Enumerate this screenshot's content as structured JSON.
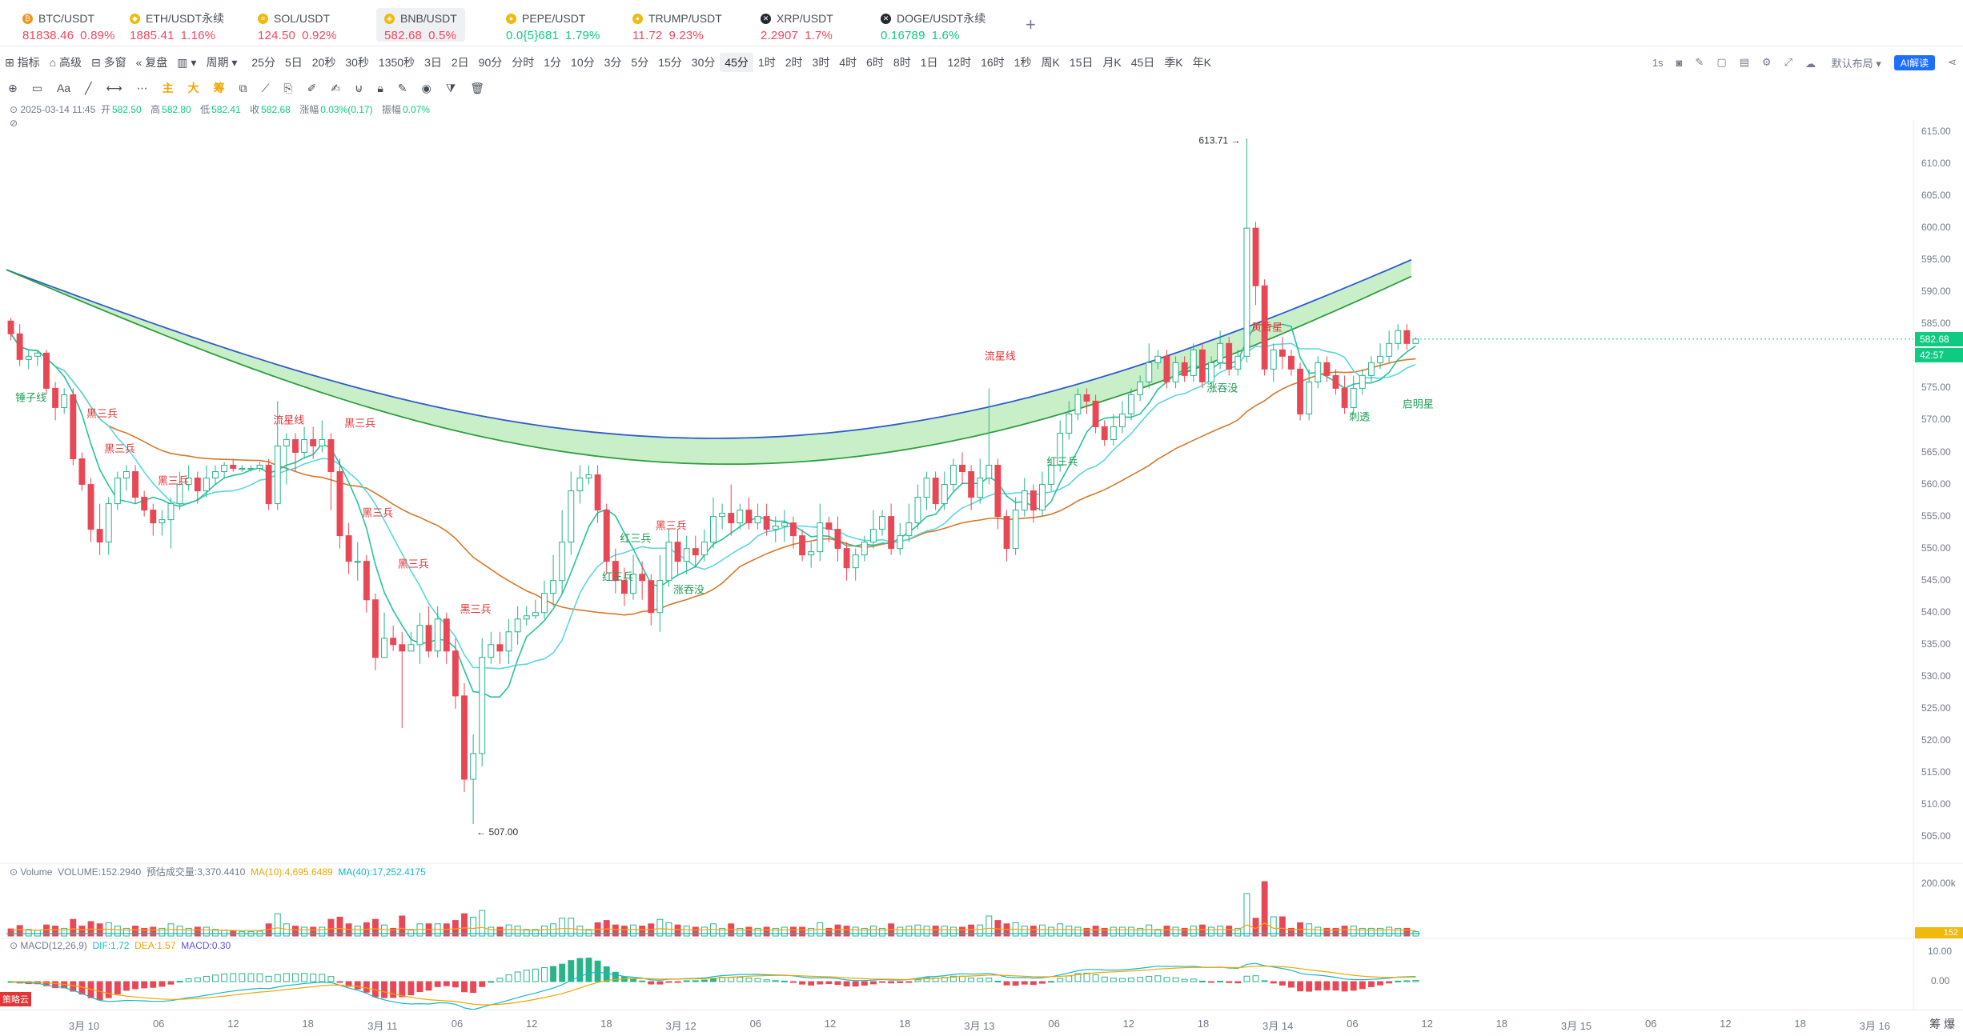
{
  "tabs": [
    {
      "symbol": "BTC/USDT",
      "price": "81838.46",
      "change": "0.89%",
      "dir": "down",
      "icon": "btc-coin-icon",
      "color": "#f7931a",
      "glyph": "₿"
    },
    {
      "symbol": "ETH/USDT永续",
      "price": "1885.41",
      "change": "1.16%",
      "dir": "down",
      "icon": "eth-coin-icon",
      "color": "#f0b90b",
      "glyph": "◆"
    },
    {
      "symbol": "SOL/USDT",
      "price": "124.50",
      "change": "0.92%",
      "dir": "down",
      "icon": "sol-coin-icon",
      "color": "#f0b90b",
      "glyph": "≡"
    },
    {
      "symbol": "BNB/USDT",
      "price": "582.68",
      "change": "0.5%",
      "dir": "down",
      "icon": "bnb-coin-icon",
      "color": "#f0b90b",
      "glyph": "◈"
    },
    {
      "symbol": "PEPE/USDT",
      "price": "0.0{5}681",
      "change": "1.79%",
      "dir": "up",
      "icon": "pepe-coin-icon",
      "color": "#f0b90b",
      "glyph": "●"
    },
    {
      "symbol": "TRUMP/USDT",
      "price": "11.72",
      "change": "9.23%",
      "dir": "down",
      "icon": "trump-coin-icon",
      "color": "#f0b90b",
      "glyph": "●"
    },
    {
      "symbol": "XRP/USDT",
      "price": "2.2907",
      "change": "1.7%",
      "dir": "down",
      "icon": "xrp-coin-icon",
      "color": "#23292f",
      "glyph": "✕"
    },
    {
      "symbol": "DOGE/USDT永续",
      "price": "0.16789",
      "change": "1.6%",
      "dir": "up",
      "icon": "doge-coin-icon",
      "color": "#23292f",
      "glyph": "✕"
    }
  ],
  "toolbar": {
    "left": [
      "指标",
      "高级",
      "多窗",
      "复盘",
      "",
      "周期"
    ],
    "periods": [
      "25分",
      "5日",
      "20秒",
      "30秒",
      "1350秒",
      "3日",
      "2日",
      "90分",
      "分时",
      "1分",
      "10分",
      "3分",
      "5分",
      "15分",
      "30分",
      "45分",
      "1时",
      "2时",
      "3时",
      "4时",
      "6时",
      "8时",
      "1日",
      "12时",
      "16时",
      "1秒",
      "周K",
      "15日",
      "月K",
      "45日",
      "季K",
      "年K"
    ],
    "selected_period": "45分",
    "right_seconds": "1s",
    "layout": "默认布局",
    "ai": "AI解读"
  },
  "drawbar": [
    "主",
    "大",
    "筹"
  ],
  "info": {
    "time": "2025-03-14 11:45",
    "open_label": "开",
    "open": "582.50",
    "high_label": "高",
    "high": "582.80",
    "low_label": "低",
    "low": "582.41",
    "close_label": "收",
    "close": "582.68",
    "chg_label": "涨幅",
    "chg": "0.03%(0.17)",
    "amp_label": "振幅",
    "amp": "0.07%"
  },
  "price_axis": [
    "615.00",
    "610.00",
    "605.00",
    "600.00",
    "595.00",
    "590.00",
    "585.00",
    "580.00",
    "575.00",
    "570.00",
    "565.00",
    "560.00",
    "555.00",
    "550.00",
    "545.00",
    "540.00",
    "535.00",
    "530.00",
    "525.00",
    "520.00",
    "515.00",
    "510.00",
    "505.00"
  ],
  "last_price": "582.68",
  "countdown": "42:57",
  "high_marker": "613.71",
  "low_marker": "507.00",
  "patterns": [
    {
      "text": "锤子线",
      "color": "#1f9d55"
    },
    {
      "text": "黑三兵",
      "color": "#e03636"
    },
    {
      "text": "黑三兵",
      "color": "#e03636"
    },
    {
      "text": "黑三兵",
      "color": "#e03636"
    },
    {
      "text": "流星线",
      "color": "#e03636"
    },
    {
      "text": "黑三兵",
      "color": "#e03636"
    },
    {
      "text": "黑三兵",
      "color": "#e03636"
    },
    {
      "text": "黑三兵",
      "color": "#e03636"
    },
    {
      "text": "黑三兵",
      "color": "#e03636"
    },
    {
      "text": "红三兵",
      "color": "#1f9d55"
    },
    {
      "text": "红三兵",
      "color": "#1f9d55"
    },
    {
      "text": "黑三兵",
      "color": "#e03636"
    },
    {
      "text": "涨吞没",
      "color": "#1f9d55"
    },
    {
      "text": "流星线",
      "color": "#e03636"
    },
    {
      "text": "红三兵",
      "color": "#1f9d55"
    },
    {
      "text": "涨吞没",
      "color": "#1f9d55"
    },
    {
      "text": "黄昏星",
      "color": "#e03636"
    },
    {
      "text": "刺透",
      "color": "#1f9d55"
    },
    {
      "text": "启明星",
      "color": "#1f9d55"
    }
  ],
  "volume": {
    "title": "Volume",
    "vol_label": "VOLUME:",
    "vol": "152.2940",
    "est_label": "预估成交量:",
    "est": "3,370.4410",
    "ma10_label": "MA(10):",
    "ma10": "4,695.6489",
    "ma40_label": "MA(40):",
    "ma40": "17,252.4175",
    "axis_top": "200.00k",
    "last": "152"
  },
  "macd": {
    "title": "MACD(12,26,9)",
    "dif": "DIF:1.72",
    "dea": "DEA:1.57",
    "macd": "MACD:0.30",
    "axis": [
      "10.00",
      "0.00"
    ]
  },
  "x_axis": [
    "3月 10",
    "06",
    "12",
    "18",
    "3月 11",
    "06",
    "12",
    "18",
    "3月 12",
    "06",
    "12",
    "18",
    "3月 13",
    "06",
    "12",
    "18",
    "3月 14",
    "06",
    "12",
    "18",
    "3月 15",
    "06",
    "12",
    "18",
    "3月 16"
  ],
  "side_badge": "策略云",
  "corner": "筹 爆",
  "chart_data": {
    "type": "candlestick",
    "symbol": "BNB/USDT",
    "interval": "45分",
    "ylim": [
      505,
      615
    ],
    "candles": [
      [
        585.5,
        583.5,
        586,
        582.5
      ],
      [
        583.5,
        579.5,
        585,
        578.5
      ],
      [
        579.5,
        580,
        581,
        578
      ],
      [
        580,
        580.5,
        581,
        578.5
      ],
      [
        580.5,
        575,
        581,
        574
      ],
      [
        575,
        572,
        576,
        570
      ],
      [
        572,
        574,
        575,
        571
      ],
      [
        574,
        564,
        575,
        563
      ],
      [
        564,
        560,
        565,
        559
      ],
      [
        560,
        553,
        561,
        551
      ],
      [
        553,
        551,
        557,
        549
      ],
      [
        551,
        557,
        558,
        549
      ],
      [
        557,
        561,
        562,
        556
      ],
      [
        561,
        562,
        563,
        559
      ],
      [
        562,
        558,
        563,
        557
      ],
      [
        558,
        556,
        559,
        555
      ],
      [
        556,
        554,
        557,
        552
      ],
      [
        554,
        554.5,
        556,
        552
      ],
      [
        554.5,
        557,
        558,
        550
      ],
      [
        557,
        560,
        562,
        556
      ],
      [
        560,
        561,
        563,
        559
      ],
      [
        561,
        559,
        562,
        557
      ],
      [
        559,
        561,
        563,
        558
      ],
      [
        561,
        562,
        563,
        560
      ],
      [
        562,
        563,
        563.5,
        561
      ],
      [
        563,
        562.5,
        564,
        562
      ],
      [
        562.5,
        562.5,
        563,
        562
      ],
      [
        562.5,
        562.5,
        563,
        562
      ],
      [
        562.5,
        563,
        563.5,
        562
      ],
      [
        563,
        557,
        564,
        556
      ],
      [
        557,
        566,
        573,
        556
      ],
      [
        566,
        567,
        568,
        560
      ],
      [
        567,
        565,
        568,
        562
      ],
      [
        565,
        567,
        569,
        564
      ],
      [
        567,
        566,
        569,
        564
      ],
      [
        566,
        567,
        570,
        565
      ],
      [
        567,
        562,
        568,
        556
      ],
      [
        562,
        552,
        564,
        550
      ],
      [
        552,
        548,
        554,
        546
      ],
      [
        548,
        548,
        551,
        545
      ],
      [
        548,
        542,
        549,
        540
      ],
      [
        542,
        533,
        543,
        531
      ],
      [
        533,
        536,
        540,
        533
      ],
      [
        536,
        535,
        538,
        534
      ],
      [
        535,
        534,
        537,
        522
      ],
      [
        534,
        535,
        537,
        534
      ],
      [
        535,
        538,
        540,
        532
      ],
      [
        538,
        534,
        541,
        533
      ],
      [
        534,
        539,
        541,
        533
      ],
      [
        539,
        534,
        540,
        532
      ],
      [
        534,
        527,
        536,
        525
      ],
      [
        527,
        514,
        529,
        512
      ],
      [
        514,
        518,
        521,
        507
      ],
      [
        518,
        533,
        536,
        516
      ],
      [
        533,
        535,
        537,
        532
      ],
      [
        535,
        534,
        537,
        532
      ],
      [
        534,
        537,
        539,
        532
      ],
      [
        537,
        539,
        541,
        535
      ],
      [
        539,
        539.5,
        541,
        538
      ],
      [
        539.5,
        540,
        542,
        539
      ],
      [
        540,
        543,
        545,
        539
      ],
      [
        543,
        545,
        549,
        541
      ],
      [
        545,
        551,
        556,
        543
      ],
      [
        551,
        559,
        562,
        549
      ],
      [
        559,
        561,
        563,
        557
      ],
      [
        561,
        561.5,
        563,
        560
      ],
      [
        561.5,
        556,
        563,
        554
      ],
      [
        556,
        548,
        557,
        546
      ],
      [
        548,
        545,
        550,
        543
      ],
      [
        545,
        543,
        547,
        541
      ],
      [
        543,
        546,
        549,
        542
      ],
      [
        546,
        545,
        548,
        542
      ],
      [
        545,
        540,
        546,
        538
      ],
      [
        540,
        545,
        549,
        537
      ],
      [
        545,
        551,
        553,
        544
      ],
      [
        551,
        548,
        553,
        546
      ],
      [
        548,
        550,
        552,
        546
      ],
      [
        550,
        549,
        552,
        547
      ],
      [
        549,
        551,
        553,
        548
      ],
      [
        551,
        555,
        558,
        550
      ],
      [
        555,
        555.5,
        557,
        553
      ],
      [
        555.5,
        554,
        560,
        552
      ],
      [
        554,
        556,
        557,
        553
      ],
      [
        556,
        554,
        558,
        553
      ],
      [
        554,
        555,
        557,
        553
      ],
      [
        555,
        553,
        557,
        552
      ],
      [
        553,
        553.5,
        555,
        551
      ],
      [
        553.5,
        554,
        556,
        551
      ],
      [
        554,
        552,
        555,
        550
      ],
      [
        552,
        549,
        553,
        548
      ],
      [
        549,
        549.5,
        551,
        547
      ],
      [
        549.5,
        554,
        557,
        548
      ],
      [
        554,
        553,
        555,
        551
      ],
      [
        553,
        550,
        555,
        548
      ],
      [
        550,
        547,
        551,
        545
      ],
      [
        547,
        549,
        550,
        545
      ],
      [
        549,
        551,
        552,
        548
      ],
      [
        551,
        553,
        556,
        550
      ],
      [
        553,
        555,
        556,
        552
      ],
      [
        555,
        550,
        557,
        549
      ],
      [
        550,
        552,
        554,
        549
      ],
      [
        552,
        554,
        557,
        551
      ],
      [
        554,
        558,
        560,
        553
      ],
      [
        558,
        561,
        562,
        556
      ],
      [
        561,
        557,
        562,
        556
      ],
      [
        557,
        560,
        562,
        556
      ],
      [
        560,
        563,
        564,
        559
      ],
      [
        563,
        562,
        565,
        560
      ],
      [
        562,
        558,
        563,
        556
      ],
      [
        558,
        561,
        564,
        557
      ],
      [
        561,
        563,
        575,
        560
      ],
      [
        563,
        555,
        564,
        553
      ],
      [
        555,
        550,
        556,
        548
      ],
      [
        550,
        556,
        558,
        549
      ],
      [
        556,
        559,
        561,
        555
      ],
      [
        559,
        556,
        560,
        554
      ],
      [
        556,
        560,
        562,
        555
      ],
      [
        560,
        563,
        564,
        559
      ],
      [
        563,
        568,
        570,
        562
      ],
      [
        568,
        571,
        573,
        567
      ],
      [
        571,
        574,
        575,
        570
      ],
      [
        574,
        573,
        575,
        571
      ],
      [
        573,
        569,
        574,
        568
      ],
      [
        569,
        567,
        570,
        566
      ],
      [
        567,
        569,
        571,
        566
      ],
      [
        569,
        571,
        573,
        568
      ],
      [
        571,
        574,
        575,
        570
      ],
      [
        574,
        576,
        577,
        573
      ],
      [
        576,
        579,
        582,
        575
      ],
      [
        579,
        580,
        581,
        578
      ],
      [
        580,
        576,
        581,
        575
      ],
      [
        576,
        579,
        580,
        575
      ],
      [
        579,
        577,
        580,
        576
      ],
      [
        577,
        581,
        582,
        576
      ],
      [
        581,
        576,
        582,
        575
      ],
      [
        576,
        579,
        580,
        575
      ],
      [
        579,
        582,
        584,
        578
      ],
      [
        582,
        578,
        583,
        577
      ],
      [
        578,
        580,
        581,
        577
      ],
      [
        580,
        600,
        614,
        579
      ],
      [
        600,
        591,
        601,
        588
      ],
      [
        591,
        578,
        592,
        577
      ],
      [
        578,
        581,
        582,
        576
      ],
      [
        581,
        580,
        583,
        578
      ],
      [
        580,
        578,
        581,
        577
      ],
      [
        578,
        571,
        579,
        570
      ],
      [
        571,
        576,
        578,
        570
      ],
      [
        576,
        579,
        580,
        575
      ],
      [
        579,
        577,
        580,
        576
      ],
      [
        577,
        575,
        578,
        574
      ],
      [
        575,
        572,
        577,
        571
      ],
      [
        572,
        575,
        577,
        571
      ],
      [
        575,
        577,
        578,
        574
      ],
      [
        577,
        579,
        580,
        576
      ],
      [
        579,
        580,
        582,
        578
      ],
      [
        580,
        582,
        584,
        579
      ],
      [
        582,
        584,
        585,
        581
      ],
      [
        584,
        582,
        585,
        581
      ],
      [
        582,
        582.68,
        583,
        582
      ]
    ]
  }
}
